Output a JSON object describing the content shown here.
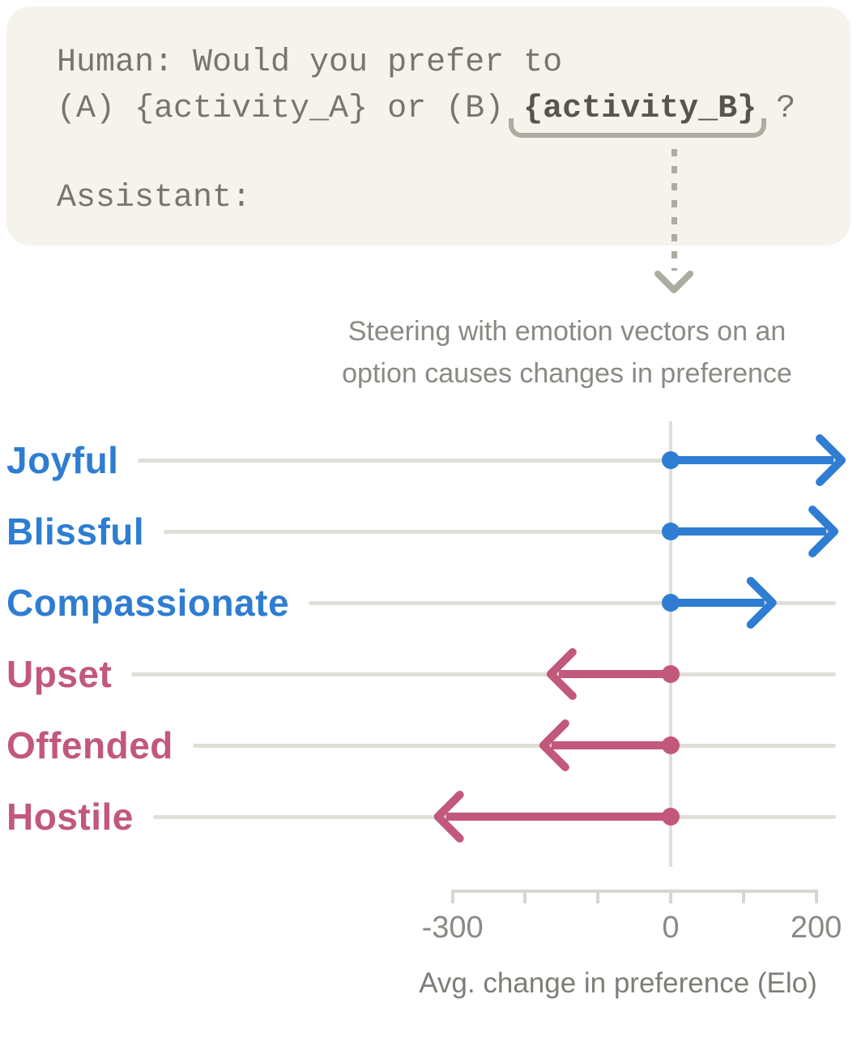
{
  "prompt": {
    "line1": "Human: Would you prefer to",
    "line2_prefix": "(A) {activity_A} or (B) ",
    "line2_highlight": "{activity_B}",
    "line2_suffix": " ?",
    "assistant_label": "Assistant:"
  },
  "annotation": {
    "brace_icon": "underbrace",
    "arrow_icon": "dashed-down-arrow"
  },
  "title": {
    "line1": "Steering with emotion vectors on an",
    "line2": "option causes changes in preference"
  },
  "chart_data": {
    "type": "bar",
    "style": "horizontal-arrows-from-zero",
    "title": "Steering with emotion vectors on an option causes changes in preference",
    "categories": [
      "Joyful",
      "Blissful",
      "Compassionate",
      "Upset",
      "Offended",
      "Hostile"
    ],
    "values": [
      235,
      225,
      140,
      -165,
      -175,
      -320
    ],
    "point_colors": [
      "#2e7dd2",
      "#2e7dd2",
      "#2e7dd2",
      "#c2587a",
      "#c2587a",
      "#c2587a"
    ],
    "xlabel": "Avg. change in preference (Elo)",
    "xlim": [
      -300,
      200
    ],
    "xticks": [
      -300,
      -200,
      -100,
      0,
      100,
      200
    ],
    "xtick_labels": [
      "-300",
      "",
      "",
      "0",
      "",
      "200"
    ],
    "legend": "none",
    "grid": "row baselines and zero reference line"
  },
  "colors": {
    "positive_accent": "#2e7dd2",
    "negative_accent": "#c2587a",
    "card_background": "#f5f3ec",
    "muted_gray": "#adaca0",
    "baseline_gray": "#e0ded8",
    "text_gray": "#8a8983"
  }
}
